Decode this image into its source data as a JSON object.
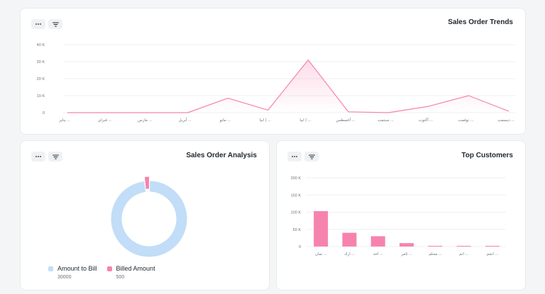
{
  "colors": {
    "pink": "#f683ae",
    "light_blue": "#c2ddf7",
    "grid": "#eef0f2",
    "axis_text": "#6b7280"
  },
  "toolbar_icons": {
    "more": "more-horizontal-icon",
    "filter": "filter-icon"
  },
  "trends": {
    "title": "Sales Order Trends",
    "chart_data": {
      "type": "area",
      "categories": [
        "يناير ...",
        "فبراي ...",
        "مارس ...",
        "أبريل ...",
        "مايو ...",
        "ابيا ( ...",
        "ابيا ( ...",
        "أغسطس ...",
        "سبتمب ...",
        "أكتوب ...",
        "نوفمب ...",
        "ديسمب ..."
      ],
      "y_tick_labels": [
        "0",
        "10 K",
        "20 K",
        "30 K",
        "40 K"
      ],
      "series": [
        {
          "values": [
            0,
            0,
            0,
            0,
            8500,
            1500,
            31000,
            500,
            0,
            3700,
            10000,
            800
          ]
        }
      ],
      "ylim": [
        0,
        40000
      ],
      "grid": true
    }
  },
  "analysis": {
    "title": "Sales Order Analysis",
    "chart_data": {
      "type": "pie",
      "labels": [
        "Amount to Bill",
        "Billed Amount"
      ],
      "values": [
        30000,
        500
      ],
      "value_labels": [
        "30000",
        "500"
      ]
    }
  },
  "customers": {
    "title": "Top Customers",
    "chart_data": {
      "type": "bar",
      "categories": [
        "نمان ...",
        "ارك ...",
        "احد ...",
        "ثامر ...",
        "محلم ...",
        "انم ...",
        "انجم ..."
      ],
      "values": [
        103000,
        40000,
        30000,
        10000,
        2000,
        1000,
        500
      ],
      "y_tick_labels": [
        "0",
        "50 K",
        "100 K",
        "150 K",
        "200 K"
      ],
      "ylim": [
        0,
        200000
      ],
      "grid": true
    }
  }
}
